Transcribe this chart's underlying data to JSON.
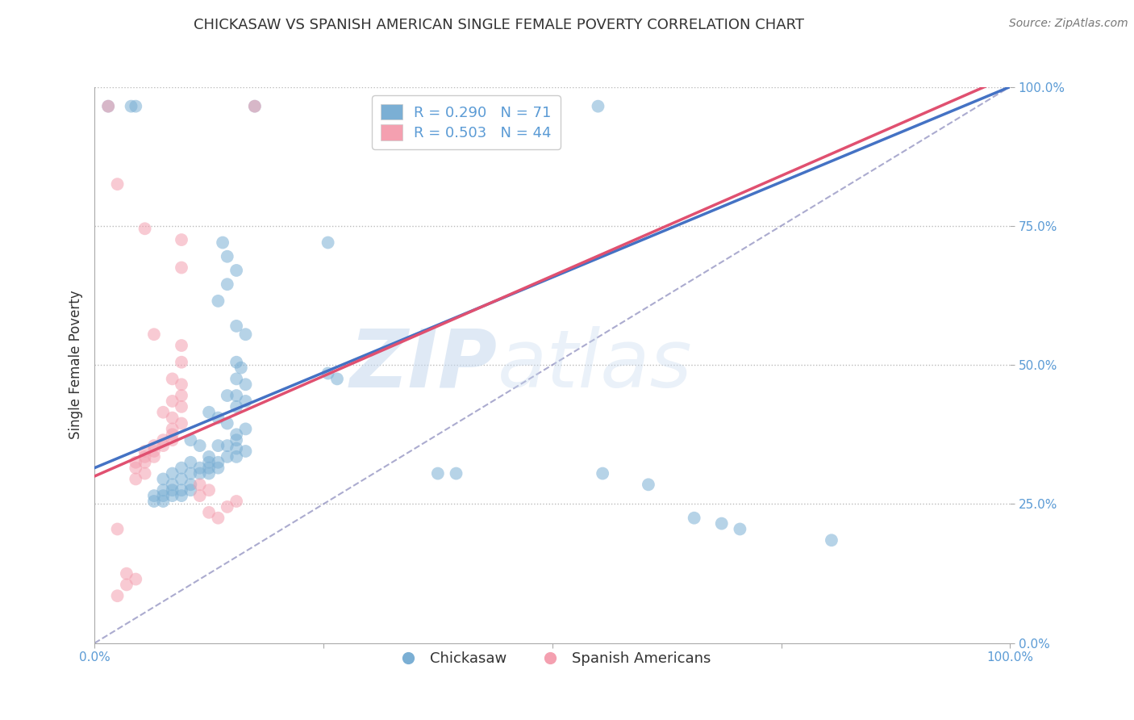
{
  "title": "CHICKASAW VS SPANISH AMERICAN SINGLE FEMALE POVERTY CORRELATION CHART",
  "source_text": "Source: ZipAtlas.com",
  "ylabel": "Single Female Poverty",
  "xlim": [
    0,
    1
  ],
  "ylim": [
    0,
    1
  ],
  "xticks": [
    0.0,
    0.25,
    0.5,
    0.75,
    1.0
  ],
  "yticks": [
    0.0,
    0.25,
    0.5,
    0.75,
    1.0
  ],
  "xticklabels": [
    "0.0%",
    "",
    "",
    "",
    "100.0%"
  ],
  "yticklabels": [
    "0.0%",
    "25.0%",
    "50.0%",
    "75.0%",
    "100.0%"
  ],
  "blue_color": "#7bafd4",
  "pink_color": "#f4a0b0",
  "blue_line_color": "#4472c4",
  "pink_line_color": "#e05070",
  "diagonal_color": "#8888bb",
  "R_blue": 0.29,
  "N_blue": 71,
  "R_pink": 0.503,
  "N_pink": 44,
  "legend_label_blue": "Chickasaw",
  "legend_label_pink": "Spanish Americans",
  "watermark_zip": "ZIP",
  "watermark_atlas": "atlas",
  "background_color": "#ffffff",
  "title_fontsize": 13,
  "tick_color": "#5b9bd5",
  "grid_color": "#bbbbbb",
  "blue_trend": [
    0.0,
    0.315,
    1.0,
    1.0
  ],
  "pink_trend": [
    0.0,
    0.3,
    1.0,
    1.02
  ],
  "blue_scatter": [
    [
      0.015,
      0.965
    ],
    [
      0.04,
      0.965
    ],
    [
      0.045,
      0.965
    ],
    [
      0.175,
      0.965
    ],
    [
      0.55,
      0.965
    ],
    [
      0.14,
      0.72
    ],
    [
      0.145,
      0.695
    ],
    [
      0.155,
      0.67
    ],
    [
      0.145,
      0.645
    ],
    [
      0.135,
      0.615
    ],
    [
      0.255,
      0.72
    ],
    [
      0.155,
      0.57
    ],
    [
      0.165,
      0.555
    ],
    [
      0.155,
      0.505
    ],
    [
      0.16,
      0.495
    ],
    [
      0.155,
      0.475
    ],
    [
      0.165,
      0.465
    ],
    [
      0.145,
      0.445
    ],
    [
      0.155,
      0.445
    ],
    [
      0.165,
      0.435
    ],
    [
      0.155,
      0.425
    ],
    [
      0.125,
      0.415
    ],
    [
      0.135,
      0.405
    ],
    [
      0.145,
      0.395
    ],
    [
      0.165,
      0.385
    ],
    [
      0.155,
      0.375
    ],
    [
      0.155,
      0.365
    ],
    [
      0.105,
      0.365
    ],
    [
      0.115,
      0.355
    ],
    [
      0.135,
      0.355
    ],
    [
      0.145,
      0.355
    ],
    [
      0.155,
      0.35
    ],
    [
      0.165,
      0.345
    ],
    [
      0.125,
      0.335
    ],
    [
      0.145,
      0.335
    ],
    [
      0.155,
      0.335
    ],
    [
      0.105,
      0.325
    ],
    [
      0.125,
      0.325
    ],
    [
      0.135,
      0.325
    ],
    [
      0.095,
      0.315
    ],
    [
      0.115,
      0.315
    ],
    [
      0.125,
      0.315
    ],
    [
      0.135,
      0.315
    ],
    [
      0.085,
      0.305
    ],
    [
      0.105,
      0.305
    ],
    [
      0.115,
      0.305
    ],
    [
      0.125,
      0.305
    ],
    [
      0.075,
      0.295
    ],
    [
      0.095,
      0.295
    ],
    [
      0.085,
      0.285
    ],
    [
      0.105,
      0.285
    ],
    [
      0.075,
      0.275
    ],
    [
      0.085,
      0.275
    ],
    [
      0.095,
      0.275
    ],
    [
      0.105,
      0.275
    ],
    [
      0.065,
      0.265
    ],
    [
      0.075,
      0.265
    ],
    [
      0.085,
      0.265
    ],
    [
      0.095,
      0.265
    ],
    [
      0.065,
      0.255
    ],
    [
      0.075,
      0.255
    ],
    [
      0.255,
      0.485
    ],
    [
      0.265,
      0.475
    ],
    [
      0.375,
      0.305
    ],
    [
      0.395,
      0.305
    ],
    [
      0.555,
      0.305
    ],
    [
      0.605,
      0.285
    ],
    [
      0.655,
      0.225
    ],
    [
      0.685,
      0.215
    ],
    [
      0.705,
      0.205
    ],
    [
      0.805,
      0.185
    ]
  ],
  "pink_scatter": [
    [
      0.015,
      0.965
    ],
    [
      0.175,
      0.965
    ],
    [
      0.025,
      0.825
    ],
    [
      0.055,
      0.745
    ],
    [
      0.095,
      0.725
    ],
    [
      0.095,
      0.675
    ],
    [
      0.065,
      0.555
    ],
    [
      0.095,
      0.535
    ],
    [
      0.095,
      0.505
    ],
    [
      0.085,
      0.475
    ],
    [
      0.095,
      0.465
    ],
    [
      0.095,
      0.445
    ],
    [
      0.085,
      0.435
    ],
    [
      0.095,
      0.425
    ],
    [
      0.075,
      0.415
    ],
    [
      0.085,
      0.405
    ],
    [
      0.095,
      0.395
    ],
    [
      0.085,
      0.385
    ],
    [
      0.085,
      0.375
    ],
    [
      0.075,
      0.365
    ],
    [
      0.085,
      0.365
    ],
    [
      0.065,
      0.355
    ],
    [
      0.075,
      0.355
    ],
    [
      0.055,
      0.345
    ],
    [
      0.065,
      0.345
    ],
    [
      0.055,
      0.335
    ],
    [
      0.065,
      0.335
    ],
    [
      0.045,
      0.325
    ],
    [
      0.055,
      0.325
    ],
    [
      0.045,
      0.315
    ],
    [
      0.055,
      0.305
    ],
    [
      0.045,
      0.295
    ],
    [
      0.115,
      0.285
    ],
    [
      0.125,
      0.275
    ],
    [
      0.115,
      0.265
    ],
    [
      0.155,
      0.255
    ],
    [
      0.145,
      0.245
    ],
    [
      0.125,
      0.235
    ],
    [
      0.135,
      0.225
    ],
    [
      0.025,
      0.205
    ],
    [
      0.035,
      0.125
    ],
    [
      0.045,
      0.115
    ],
    [
      0.035,
      0.105
    ],
    [
      0.025,
      0.085
    ]
  ]
}
